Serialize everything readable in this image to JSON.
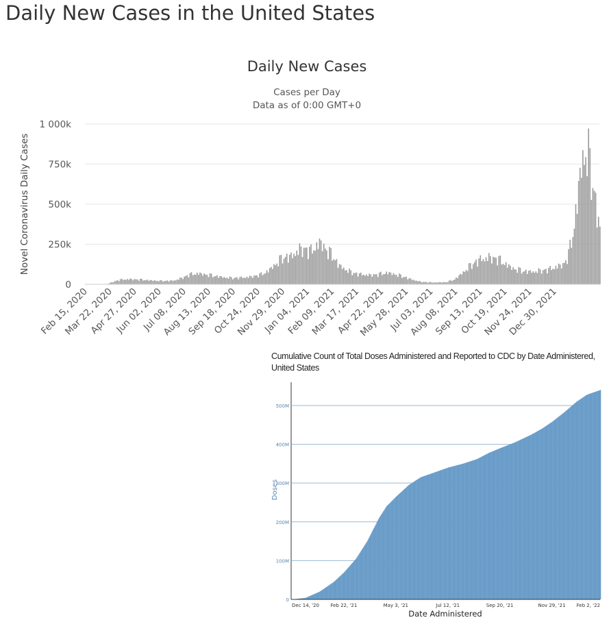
{
  "page": {
    "title": "Daily New Cases in the United States"
  },
  "chart_data": [
    {
      "type": "bar",
      "title": "Daily New Cases",
      "subtitle": [
        "Cases per Day",
        "Data as of 0:00 GMT+0"
      ],
      "xlabel": "",
      "ylabel": "Novel Coronavirus Daily Cases",
      "ylim": [
        0,
        1000000
      ],
      "yticks": [
        0,
        250000,
        500000,
        750000,
        1000000
      ],
      "ytick_labels": [
        "0",
        "250k",
        "500k",
        "750k",
        "1 000k"
      ],
      "x_tick_labels": [
        "Feb 15, 2020",
        "Mar 22, 2020",
        "Apr 27, 2020",
        "Jun 02, 2020",
        "Jul 08, 2020",
        "Aug 13, 2020",
        "Sep 18, 2020",
        "Oct 24, 2020",
        "Nov 29, 2020",
        "Jan 04, 2021",
        "Feb 09, 2021",
        "Mar 17, 2021",
        "Apr 22, 2021",
        "May 28, 2021",
        "Jul 03, 2021",
        "Aug 08, 2021",
        "Sep 13, 2021",
        "Oct 19, 2021",
        "Nov 24, 2021",
        "Dec 30, 2021"
      ],
      "x_start": "Feb 15, 2020",
      "x_end": "Feb 04, 2022",
      "grid": true,
      "legend": "none",
      "bar_color": "#999999",
      "series": [
        {
          "values_note": "",
          "x": [
            "2020-02-15",
            "2020-03-01",
            "2020-03-15",
            "2020-03-22",
            "2020-04-01",
            "2020-04-10",
            "2020-04-20",
            "2020-05-01",
            "2020-05-15",
            "2020-06-01",
            "2020-06-15",
            "2020-06-25",
            "2020-07-08",
            "2020-07-20",
            "2020-08-01",
            "2020-08-13",
            "2020-08-25",
            "2020-09-05",
            "2020-09-18",
            "2020-10-01",
            "2020-10-15",
            "2020-10-24",
            "2020-11-05",
            "2020-11-15",
            "2020-11-29",
            "2020-12-05",
            "2020-12-15",
            "2020-12-25",
            "2021-01-04",
            "2021-01-08",
            "2021-01-15",
            "2021-01-25",
            "2021-02-01",
            "2021-02-09",
            "2021-02-20",
            "2021-03-01",
            "2021-03-17",
            "2021-04-01",
            "2021-04-12",
            "2021-04-22",
            "2021-05-05",
            "2021-05-15",
            "2021-05-28",
            "2021-06-10",
            "2021-06-20",
            "2021-07-03",
            "2021-07-15",
            "2021-07-25",
            "2021-08-08",
            "2021-08-20",
            "2021-09-01",
            "2021-09-13",
            "2021-09-25",
            "2021-10-05",
            "2021-10-19",
            "2021-11-01",
            "2021-11-10",
            "2021-11-24",
            "2021-12-05",
            "2021-12-15",
            "2021-12-22",
            "2021-12-30",
            "2022-01-05",
            "2022-01-10",
            "2022-01-18",
            "2022-01-25",
            "2022-02-01",
            "2022-02-04"
          ],
          "values": [
            0,
            1000,
            3000,
            15000,
            28000,
            30000,
            30000,
            28000,
            23000,
            20000,
            22000,
            35000,
            60000,
            65000,
            58000,
            50000,
            42000,
            38000,
            40000,
            45000,
            58000,
            75000,
            120000,
            160000,
            170000,
            200000,
            215000,
            200000,
            240000,
            250000,
            210000,
            170000,
            120000,
            95000,
            72000,
            62000,
            55000,
            62000,
            70000,
            60000,
            45000,
            30000,
            15000,
            12000,
            11000,
            13000,
            30000,
            65000,
            120000,
            150000,
            160000,
            155000,
            120000,
            95000,
            80000,
            75000,
            80000,
            90000,
            105000,
            120000,
            180000,
            350000,
            580000,
            750000,
            800000,
            600000,
            420000,
            300000
          ]
        }
      ]
    },
    {
      "type": "bar",
      "title": "Cumulative Count of Total Doses Administered and Reported to CDC by Date Administered, United States",
      "xlabel": "Date Administered",
      "ylabel": "Doses",
      "ylim": [
        0,
        560000000
      ],
      "yticks": [
        0,
        100000000,
        200000000,
        300000000,
        400000000,
        500000000
      ],
      "ytick_labels": [
        "0",
        "100M",
        "200M",
        "300M",
        "400M",
        "500M"
      ],
      "x_tick_labels": [
        "Dec 14, '20",
        "Feb 22, '21",
        "May 3, '21",
        "Jul 12, '21",
        "Sep 20, '21",
        "Nov 29, '21",
        "Feb 2, '22"
      ],
      "grid": true,
      "legend": "none",
      "bar_color": "#6a9dc9",
      "series": [
        {
          "x": [
            "2020-12-14",
            "2021-01-01",
            "2021-01-20",
            "2021-02-08",
            "2021-02-22",
            "2021-03-10",
            "2021-03-25",
            "2021-04-10",
            "2021-04-20",
            "2021-05-03",
            "2021-05-20",
            "2021-06-05",
            "2021-06-20",
            "2021-07-12",
            "2021-08-01",
            "2021-08-20",
            "2021-09-05",
            "2021-09-20",
            "2021-10-10",
            "2021-11-01",
            "2021-11-15",
            "2021-11-29",
            "2021-12-15",
            "2022-01-01",
            "2022-01-15",
            "2022-02-02"
          ],
          "values": [
            0,
            4000000,
            20000000,
            45000000,
            70000000,
            105000000,
            150000000,
            210000000,
            240000000,
            265000000,
            295000000,
            315000000,
            325000000,
            340000000,
            350000000,
            362000000,
            378000000,
            390000000,
            405000000,
            425000000,
            440000000,
            458000000,
            482000000,
            510000000,
            528000000,
            540000000
          ]
        }
      ]
    }
  ]
}
